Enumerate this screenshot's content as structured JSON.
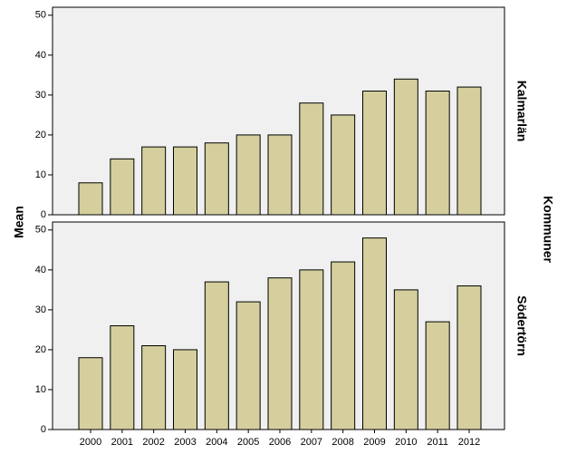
{
  "chart_data": {
    "type": "bar",
    "ylabel": "Mean",
    "facet_label": "Kommuner",
    "categories": [
      "2000",
      "2001",
      "2002",
      "2003",
      "2004",
      "2005",
      "2006",
      "2007",
      "2008",
      "2009",
      "2010",
      "2011",
      "2012"
    ],
    "color": "#d4cf9c",
    "panels": [
      {
        "name": "Kalmarlän",
        "values": [
          8,
          14,
          17,
          17,
          18,
          20,
          20,
          28,
          25,
          31,
          34,
          31,
          32
        ]
      },
      {
        "name": "Södertörn",
        "values": [
          18,
          26,
          21,
          20,
          37,
          32,
          38,
          40,
          42,
          48,
          35,
          27,
          36
        ]
      }
    ],
    "ylim": [
      0,
      52
    ],
    "yticks": [
      0,
      10,
      20,
      30,
      40,
      50
    ]
  }
}
